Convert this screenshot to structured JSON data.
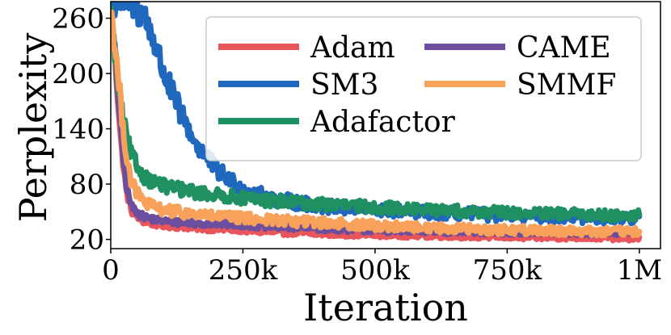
{
  "chart_data": {
    "type": "line",
    "title": "",
    "xlabel": "Iteration",
    "ylabel": "Perplexity",
    "xlim": [
      0,
      1040000
    ],
    "ylim": [
      10,
      278
    ],
    "xticks": [
      0,
      250000,
      500000,
      750000,
      1000000
    ],
    "xtick_labels": [
      "0",
      "250k",
      "500k",
      "750k",
      "1M"
    ],
    "yticks": [
      20,
      80,
      140,
      200,
      260
    ],
    "ytick_labels": [
      "20",
      "80",
      "140",
      "200",
      "260"
    ],
    "legend_position": "upper-right",
    "legend_columns": 2,
    "series": [
      {
        "name": "Adam",
        "color": "#e8555a",
        "x": [
          0,
          10000,
          20000,
          30000,
          40000,
          60000,
          80000,
          100000,
          150000,
          200000,
          250000,
          300000,
          400000,
          500000,
          600000,
          700000,
          800000,
          900000,
          1000000
        ],
        "y": [
          270,
          200,
          120,
          70,
          50,
          40,
          37,
          35,
          33,
          31,
          30,
          28,
          26,
          25,
          24,
          23,
          22,
          22,
          21
        ],
        "noise": 3.5
      },
      {
        "name": "CAME",
        "color": "#6b4e9e",
        "x": [
          0,
          10000,
          20000,
          30000,
          40000,
          60000,
          80000,
          100000,
          150000,
          200000,
          250000,
          300000,
          400000,
          500000,
          600000,
          700000,
          800000,
          900000,
          1000000
        ],
        "y": [
          270,
          210,
          130,
          75,
          55,
          45,
          42,
          40,
          38,
          37,
          36,
          34,
          32,
          30,
          29,
          28,
          28,
          27,
          27
        ],
        "noise": 4
      },
      {
        "name": "SM3",
        "color": "#2068bd",
        "x": [
          0,
          40000,
          60000,
          80000,
          100000,
          130000,
          160000,
          200000,
          250000,
          300000,
          350000,
          400000,
          500000,
          600000,
          700000,
          800000,
          900000,
          1000000
        ],
        "y": [
          280,
          280,
          265,
          240,
          200,
          160,
          125,
          95,
          75,
          65,
          60,
          56,
          52,
          49,
          47,
          45,
          44,
          43
        ],
        "noise": 7
      },
      {
        "name": "Adafactor",
        "color": "#1f9061",
        "x": [
          0,
          10000,
          20000,
          30000,
          40000,
          60000,
          80000,
          100000,
          150000,
          200000,
          250000,
          300000,
          400000,
          500000,
          600000,
          700000,
          800000,
          900000,
          1000000
        ],
        "y": [
          260,
          210,
          160,
          130,
          110,
          90,
          82,
          78,
          72,
          68,
          65,
          62,
          58,
          55,
          52,
          50,
          48,
          47,
          46
        ],
        "noise": 6
      },
      {
        "name": "SMMF",
        "color": "#f7a15a",
        "x": [
          0,
          10000,
          20000,
          30000,
          40000,
          60000,
          80000,
          100000,
          150000,
          200000,
          250000,
          300000,
          400000,
          500000,
          600000,
          700000,
          800000,
          900000,
          1000000
        ],
        "y": [
          270,
          220,
          160,
          110,
          80,
          62,
          55,
          52,
          48,
          45,
          43,
          41,
          38,
          35,
          33,
          31,
          30,
          29,
          28
        ],
        "noise": 6
      }
    ],
    "draw_order": [
      "Adam",
      "CAME",
      "SM3",
      "Adafactor",
      "SMMF"
    ]
  }
}
